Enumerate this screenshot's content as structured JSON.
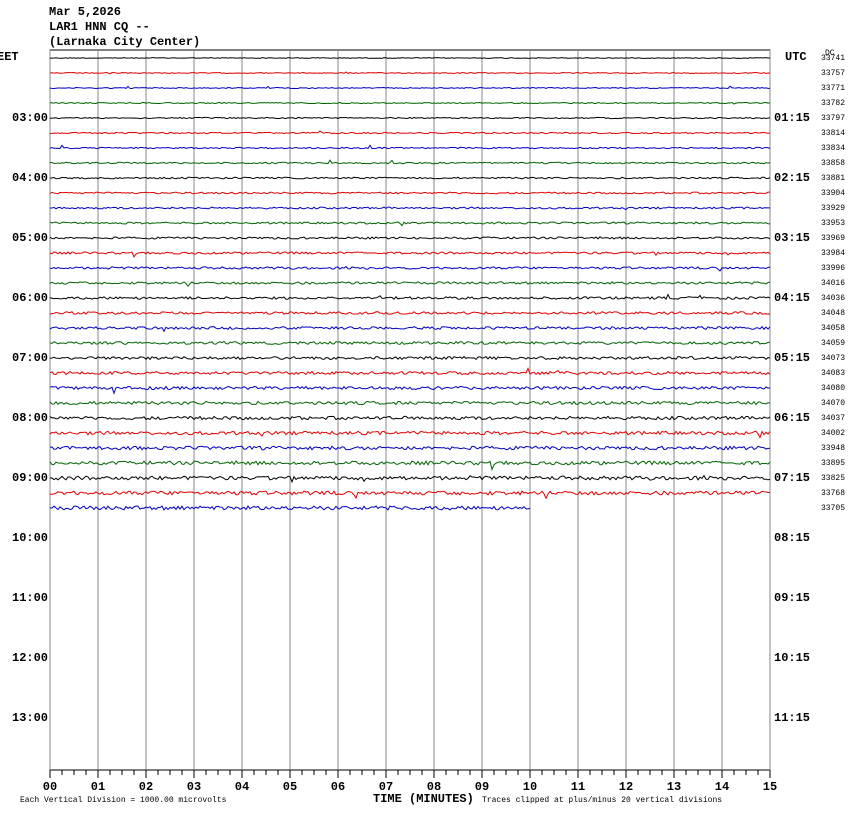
{
  "header": {
    "date": "Mar 5,2026",
    "station": "LAR1 HNN CQ --",
    "location": "(Larnaka City Center)"
  },
  "left_label": "EET",
  "right_label": "UTC",
  "offset_label": "DC",
  "left_times": [
    "03:00",
    "04:00",
    "05:00",
    "06:00",
    "07:00",
    "08:00",
    "09:00",
    "10:00",
    "11:00",
    "12:00",
    "13:00"
  ],
  "right_times": [
    "01:15",
    "02:15",
    "03:15",
    "04:15",
    "05:15",
    "06:15",
    "07:15",
    "08:15",
    "09:15",
    "10:15",
    "11:15"
  ],
  "row_offsets": [
    "33741",
    "33757",
    "33771",
    "33782",
    "33797",
    "33814",
    "33834",
    "33858",
    "33881",
    "33904",
    "33929",
    "33953",
    "33969",
    "33984",
    "33996",
    "34016",
    "34036",
    "34048",
    "34058",
    "34059",
    "34073",
    "34083",
    "34080",
    "34070",
    "34037",
    "34002",
    "33948",
    "33895",
    "33825",
    "33768",
    "33705"
  ],
  "trace_colors": [
    "#000000",
    "#e00000",
    "#0000c0",
    "#006400"
  ],
  "last_trace_minutes": 10,
  "x_axis": {
    "label": "TIME (MINUTES)",
    "ticks": [
      "00",
      "01",
      "02",
      "03",
      "04",
      "05",
      "06",
      "07",
      "08",
      "09",
      "10",
      "11",
      "12",
      "13",
      "14",
      "15"
    ]
  },
  "footer": {
    "scale": "Each Vertical Division = 1000.00 microvolts",
    "clip": "Traces clipped at plus/minus 20 vertical divisions"
  }
}
